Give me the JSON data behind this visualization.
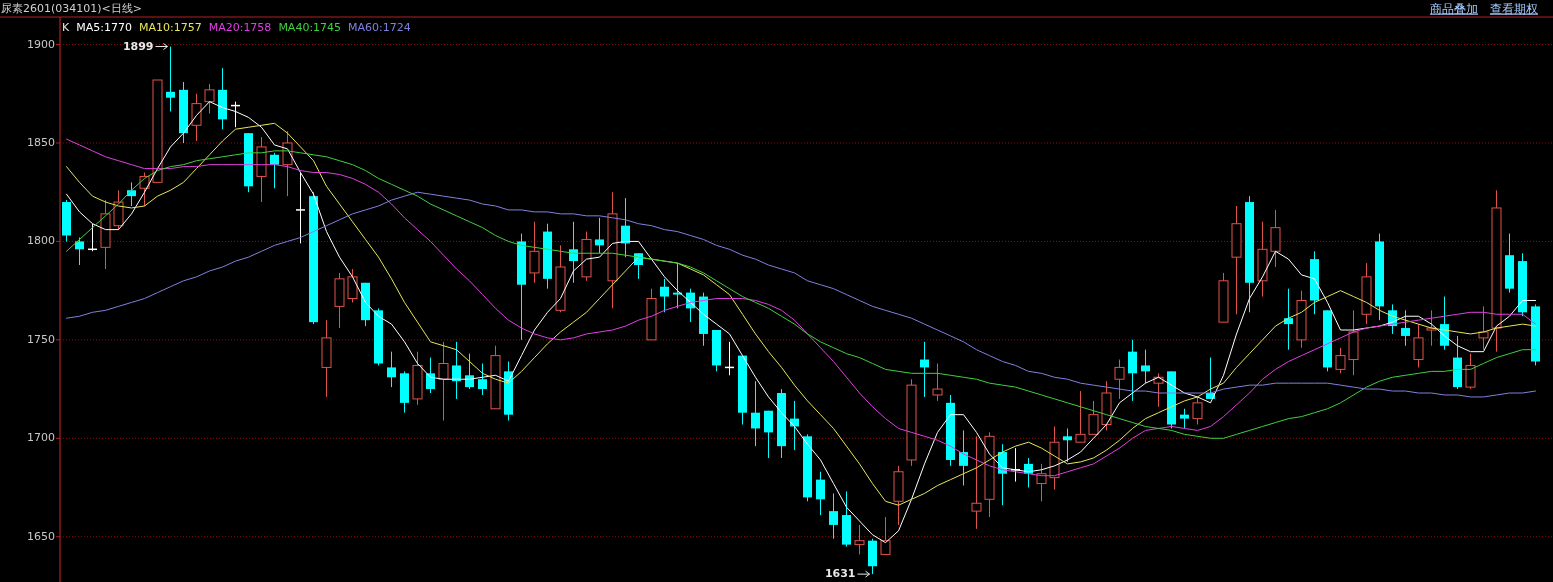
{
  "chart_data": {
    "type": "candlestick",
    "title": "尿素2601(034101)<日线>",
    "legend_title": "K",
    "legend": "top left",
    "grid": "y",
    "tick_labels": "y",
    "annotations": [
      "1899",
      "1631",
      "商品叠加",
      "查看期权"
    ],
    "ylim": [
      1627,
      1914
    ],
    "yticks": [
      1650,
      1700,
      1750,
      1800,
      1850,
      1900
    ],
    "categories": [
      null,
      null,
      null,
      null,
      null,
      null,
      null,
      null,
      null,
      null,
      null,
      null,
      null,
      null,
      null,
      null,
      null,
      null,
      null,
      null,
      null,
      null,
      null,
      null,
      null,
      null,
      null,
      null,
      null,
      null,
      null,
      null,
      null,
      null,
      null,
      null,
      null,
      null,
      null,
      null,
      null,
      null,
      null,
      null,
      null,
      null,
      null,
      null,
      null,
      null,
      null,
      null,
      null,
      null,
      null,
      null,
      null,
      null,
      null,
      null,
      null,
      null,
      null,
      null,
      null,
      null,
      null,
      null,
      null,
      null,
      null,
      null,
      null,
      null,
      null,
      null,
      null,
      null,
      null,
      null,
      null,
      null,
      null,
      null,
      null,
      null,
      null,
      null,
      null,
      null,
      null,
      null,
      null,
      null,
      null,
      null,
      null,
      null,
      null,
      null,
      null,
      null,
      null,
      null,
      null,
      null,
      null,
      null,
      null,
      null,
      null,
      null,
      null,
      null
    ],
    "ohlc": [
      [
        1820,
        1821,
        1800,
        1803
      ],
      [
        1800,
        1802,
        1788,
        1796
      ],
      [
        1796,
        1809,
        1795,
        1796
      ],
      [
        1797,
        1821,
        1786,
        1814
      ],
      [
        1808,
        1826,
        1806,
        1820
      ],
      [
        1826,
        1830,
        1818,
        1823
      ],
      [
        1827,
        1835,
        1818,
        1833
      ],
      [
        1830,
        1882,
        1830,
        1882
      ],
      [
        1876,
        1899,
        1866,
        1873
      ],
      [
        1877,
        1881,
        1850,
        1855
      ],
      [
        1859,
        1875,
        1851,
        1870
      ],
      [
        1871,
        1880,
        1865,
        1877
      ],
      [
        1877,
        1888,
        1857,
        1862
      ],
      [
        1869,
        1871,
        1858,
        1869
      ],
      [
        1855,
        1855,
        1825,
        1828
      ],
      [
        1833,
        1853,
        1820,
        1848
      ],
      [
        1844,
        1845,
        1827,
        1839
      ],
      [
        1839,
        1856,
        1823,
        1850
      ],
      [
        1816,
        1835,
        1799,
        1816
      ],
      [
        1823,
        1825,
        1758,
        1759
      ],
      [
        1736,
        1760,
        1721,
        1751
      ],
      [
        1767,
        1784,
        1756,
        1781
      ],
      [
        1771,
        1786,
        1769,
        1782
      ],
      [
        1779,
        1779,
        1757,
        1760
      ],
      [
        1765,
        1766,
        1737,
        1738
      ],
      [
        1736,
        1744,
        1726,
        1731
      ],
      [
        1733,
        1734,
        1713,
        1718
      ],
      [
        1720,
        1744,
        1717,
        1737
      ],
      [
        1733,
        1741,
        1723,
        1725
      ],
      [
        1730,
        1749,
        1709,
        1738
      ],
      [
        1737,
        1749,
        1720,
        1729
      ],
      [
        1732,
        1743,
        1725,
        1726
      ],
      [
        1730,
        1738,
        1722,
        1725
      ],
      [
        1715,
        1747,
        1715,
        1742
      ],
      [
        1734,
        1739,
        1709,
        1712
      ],
      [
        1800,
        1804,
        1750,
        1778
      ],
      [
        1784,
        1810,
        1779,
        1795
      ],
      [
        1805,
        1809,
        1776,
        1781
      ],
      [
        1765,
        1798,
        1764,
        1787
      ],
      [
        1796,
        1810,
        1779,
        1790
      ],
      [
        1782,
        1805,
        1780,
        1801
      ],
      [
        1801,
        1812,
        1794,
        1798
      ],
      [
        1780,
        1825,
        1766,
        1814
      ],
      [
        1808,
        1822,
        1792,
        1799
      ],
      [
        1794,
        1794,
        1781,
        1788
      ],
      [
        1750,
        1776,
        1750,
        1771
      ],
      [
        1777,
        1781,
        1764,
        1772
      ],
      [
        1774,
        1789,
        1766,
        1773
      ],
      [
        1774,
        1776,
        1759,
        1766
      ],
      [
        1772,
        1774,
        1747,
        1753
      ],
      [
        1755,
        1755,
        1734,
        1737
      ],
      [
        1736,
        1749,
        1732,
        1736
      ],
      [
        1742,
        1742,
        1707,
        1713
      ],
      [
        1713,
        1729,
        1696,
        1705
      ],
      [
        1714,
        1714,
        1690,
        1703
      ],
      [
        1723,
        1725,
        1690,
        1696
      ],
      [
        1710,
        1719,
        1694,
        1706
      ],
      [
        1701,
        1702,
        1668,
        1670
      ],
      [
        1679,
        1683,
        1661,
        1669
      ],
      [
        1663,
        1672,
        1649,
        1656
      ],
      [
        1661,
        1673,
        1645,
        1646
      ],
      [
        1646,
        1656,
        1641,
        1648
      ],
      [
        1648,
        1649,
        1631,
        1635
      ],
      [
        1641,
        1660,
        1641,
        1648
      ],
      [
        1668,
        1686,
        1656,
        1683
      ],
      [
        1689,
        1730,
        1686,
        1727
      ],
      [
        1740,
        1749,
        1721,
        1736
      ],
      [
        1722,
        1738,
        1719,
        1725
      ],
      [
        1718,
        1722,
        1686,
        1689
      ],
      [
        1693,
        1704,
        1676,
        1686
      ],
      [
        1663,
        1701,
        1654,
        1667
      ],
      [
        1669,
        1703,
        1660,
        1701
      ],
      [
        1693,
        1697,
        1666,
        1682
      ],
      [
        1684,
        1695,
        1678,
        1684
      ],
      [
        1687,
        1690,
        1675,
        1682
      ],
      [
        1677,
        1687,
        1668,
        1682
      ],
      [
        1680,
        1706,
        1674,
        1698
      ],
      [
        1701,
        1705,
        1688,
        1699
      ],
      [
        1698,
        1724,
        1698,
        1702
      ],
      [
        1702,
        1719,
        1702,
        1712
      ],
      [
        1707,
        1729,
        1704,
        1723
      ],
      [
        1730,
        1740,
        1720,
        1736
      ],
      [
        1744,
        1750,
        1719,
        1733
      ],
      [
        1737,
        1745,
        1728,
        1734
      ],
      [
        1728,
        1733,
        1716,
        1731
      ],
      [
        1734,
        1734,
        1705,
        1707
      ],
      [
        1712,
        1715,
        1705,
        1710
      ],
      [
        1710,
        1721,
        1707,
        1718
      ],
      [
        1723,
        1741,
        1720,
        1720
      ],
      [
        1759,
        1784,
        1759,
        1780
      ],
      [
        1792,
        1818,
        1763,
        1809
      ],
      [
        1820,
        1823,
        1764,
        1779
      ],
      [
        1780,
        1810,
        1772,
        1796
      ],
      [
        1795,
        1816,
        1787,
        1807
      ],
      [
        1761,
        1776,
        1745,
        1758
      ],
      [
        1750,
        1775,
        1746,
        1770
      ],
      [
        1791,
        1795,
        1763,
        1770
      ],
      [
        1765,
        1765,
        1734,
        1736
      ],
      [
        1735,
        1746,
        1733,
        1742
      ],
      [
        1740,
        1765,
        1732,
        1754
      ],
      [
        1763,
        1789,
        1758,
        1782
      ],
      [
        1800,
        1804,
        1760,
        1767
      ],
      [
        1765,
        1768,
        1753,
        1757
      ],
      [
        1756,
        1765,
        1747,
        1752
      ],
      [
        1740,
        1758,
        1736,
        1751
      ],
      [
        1755,
        1765,
        1747,
        1756
      ],
      [
        1758,
        1772,
        1745,
        1747
      ],
      [
        1741,
        1752,
        1725,
        1726
      ],
      [
        1726,
        1743,
        1725,
        1737
      ],
      [
        1751,
        1767,
        1745,
        1754
      ],
      [
        1756,
        1826,
        1744,
        1817
      ],
      [
        1793,
        1804,
        1774,
        1776
      ],
      [
        1790,
        1794,
        1762,
        1764
      ],
      [
        1767,
        1768,
        1737,
        1739
      ]
    ],
    "colors": [
      "#00ffff",
      "#00ffff",
      "#ffffff",
      "#e0524a",
      "#e0524a",
      "#00ffff",
      "#e0524a",
      "#e0524a",
      "#00ffff",
      "#00ffff",
      "#e0524a",
      "#e0524a",
      "#00ffff",
      "#ffffff",
      "#00ffff",
      "#e0524a",
      "#00ffff",
      "#e0524a",
      "#ffffff",
      "#00ffff",
      "#e0524a",
      "#e0524a",
      "#e0524a",
      "#00ffff",
      "#00ffff",
      "#00ffff",
      "#00ffff",
      "#e0524a",
      "#00ffff",
      "#e0524a",
      "#00ffff",
      "#00ffff",
      "#00ffff",
      "#e0524a",
      "#00ffff",
      "#00ffff",
      "#e0524a",
      "#00ffff",
      "#e0524a",
      "#00ffff",
      "#e0524a",
      "#00ffff",
      "#e0524a",
      "#00ffff",
      "#00ffff",
      "#e0524a",
      "#00ffff",
      "#00ffff",
      "#00ffff",
      "#00ffff",
      "#00ffff",
      "#ffffff",
      "#00ffff",
      "#00ffff",
      "#00ffff",
      "#00ffff",
      "#00ffff",
      "#00ffff",
      "#00ffff",
      "#00ffff",
      "#00ffff",
      "#e0524a",
      "#00ffff",
      "#e0524a",
      "#e0524a",
      "#e0524a",
      "#00ffff",
      "#e0524a",
      "#00ffff",
      "#00ffff",
      "#e0524a",
      "#e0524a",
      "#00ffff",
      "#ffffff",
      "#00ffff",
      "#e0524a",
      "#e0524a",
      "#00ffff",
      "#e0524a",
      "#e0524a",
      "#e0524a",
      "#e0524a",
      "#00ffff",
      "#00ffff",
      "#e0524a",
      "#00ffff",
      "#00ffff",
      "#e0524a",
      "#00ffff",
      "#e0524a",
      "#e0524a",
      "#00ffff",
      "#e0524a",
      "#e0524a",
      "#00ffff",
      "#e0524a",
      "#00ffff",
      "#00ffff",
      "#e0524a",
      "#e0524a",
      "#e0524a",
      "#00ffff",
      "#00ffff",
      "#00ffff",
      "#e0524a",
      "#e0524a",
      "#00ffff",
      "#00ffff",
      "#e0524a",
      "#e0524a",
      "#e0524a",
      "#00ffff",
      "#00ffff",
      "#00ffff"
    ],
    "series": [
      {
        "name": "MA5:1770",
        "color": "#ffffff",
        "type": "line",
        "values": [
          1824,
          1815,
          1809,
          1806,
          1806,
          1814,
          1825,
          1837,
          1848,
          1855,
          1864,
          1871,
          1868,
          1866,
          1863,
          1858,
          1849,
          1847,
          1835,
          1824,
          1805,
          1792,
          1782,
          1769,
          1762,
          1758,
          1749,
          1738,
          1731,
          1730,
          1730,
          1730,
          1731,
          1732,
          1729,
          1742,
          1755,
          1764,
          1771,
          1785,
          1791,
          1792,
          1799,
          1800,
          1800,
          1791,
          1782,
          1775,
          1769,
          1763,
          1758,
          1753,
          1742,
          1731,
          1721,
          1713,
          1706,
          1697,
          1689,
          1677,
          1665,
          1658,
          1651,
          1647,
          1653,
          1669,
          1687,
          1703,
          1712,
          1712,
          1703,
          1692,
          1685,
          1684,
          1683,
          1684,
          1686,
          1689,
          1693,
          1700,
          1707,
          1718,
          1723,
          1728,
          1731,
          1727,
          1723,
          1721,
          1718,
          1732,
          1753,
          1771,
          1782,
          1795,
          1791,
          1783,
          1781,
          1769,
          1755,
          1755,
          1756,
          1757,
          1759,
          1762,
          1762,
          1758,
          1752,
          1747,
          1744,
          1744,
          1757,
          1762,
          1770,
          1770
        ]
      },
      {
        "name": "MA10:1757",
        "color": "#e6e65a",
        "type": "line",
        "values": [
          1838,
          1830,
          1823,
          1820,
          1818,
          1817,
          1818,
          1823,
          1826,
          1830,
          1837,
          1844,
          1851,
          1857,
          1858,
          1859,
          1860,
          1855,
          1848,
          1841,
          1828,
          1819,
          1810,
          1801,
          1792,
          1781,
          1769,
          1759,
          1749,
          1747,
          1745,
          1739,
          1733,
          1730,
          1728,
          1734,
          1741,
          1748,
          1754,
          1759,
          1764,
          1771,
          1778,
          1785,
          1792,
          1791,
          1790,
          1789,
          1786,
          1783,
          1778,
          1773,
          1763,
          1753,
          1744,
          1736,
          1727,
          1719,
          1712,
          1705,
          1696,
          1687,
          1677,
          1668,
          1666,
          1669,
          1672,
          1676,
          1679,
          1682,
          1685,
          1689,
          1693,
          1696,
          1698,
          1695,
          1691,
          1687,
          1688,
          1690,
          1694,
          1699,
          1705,
          1710,
          1713,
          1716,
          1719,
          1721,
          1725,
          1728,
          1736,
          1743,
          1750,
          1757,
          1761,
          1764,
          1769,
          1772,
          1775,
          1772,
          1769,
          1765,
          1762,
          1760,
          1758,
          1756,
          1755,
          1754,
          1753,
          1754,
          1756,
          1757,
          1758,
          1757
        ]
      },
      {
        "name": "MA20:1758",
        "color": "#e040e0",
        "type": "line",
        "values": [
          1852,
          1849,
          1846,
          1843,
          1841,
          1839,
          1837,
          1837,
          1837,
          1838,
          1838,
          1839,
          1839,
          1839,
          1839,
          1839,
          1839,
          1838,
          1836,
          1835,
          1835,
          1834,
          1832,
          1829,
          1825,
          1819,
          1812,
          1806,
          1800,
          1793,
          1786,
          1780,
          1773,
          1766,
          1760,
          1756,
          1753,
          1751,
          1750,
          1751,
          1753,
          1754,
          1755,
          1757,
          1760,
          1762,
          1765,
          1767,
          1769,
          1770,
          1771,
          1771,
          1771,
          1770,
          1768,
          1765,
          1760,
          1753,
          1746,
          1739,
          1731,
          1723,
          1716,
          1710,
          1705,
          1703,
          1701,
          1699,
          1696,
          1692,
          1689,
          1686,
          1684,
          1683,
          1682,
          1681,
          1681,
          1683,
          1685,
          1687,
          1691,
          1695,
          1700,
          1704,
          1705,
          1706,
          1705,
          1704,
          1706,
          1711,
          1717,
          1723,
          1730,
          1735,
          1739,
          1742,
          1745,
          1748,
          1751,
          1754,
          1756,
          1757,
          1758,
          1759,
          1760,
          1761,
          1762,
          1763,
          1764,
          1764,
          1763,
          1763,
          1763,
          1758
        ]
      },
      {
        "name": "MA40:1745",
        "color": "#40d040",
        "type": "line",
        "values": [
          1795,
          1801,
          1807,
          1813,
          1819,
          1826,
          1832,
          1836,
          1838,
          1839,
          1841,
          1842,
          1843,
          1844,
          1845,
          1845,
          1846,
          1846,
          1845,
          1844,
          1843,
          1841,
          1839,
          1836,
          1832,
          1829,
          1826,
          1823,
          1819,
          1816,
          1813,
          1810,
          1807,
          1803,
          1800,
          1798,
          1797,
          1796,
          1795,
          1794,
          1794,
          1794,
          1794,
          1793,
          1792,
          1791,
          1790,
          1789,
          1787,
          1784,
          1780,
          1776,
          1772,
          1769,
          1766,
          1762,
          1758,
          1753,
          1749,
          1746,
          1743,
          1741,
          1738,
          1735,
          1734,
          1733,
          1733,
          1733,
          1732,
          1731,
          1730,
          1728,
          1727,
          1726,
          1724,
          1722,
          1720,
          1718,
          1716,
          1714,
          1712,
          1710,
          1708,
          1706,
          1705,
          1704,
          1702,
          1701,
          1700,
          1700,
          1702,
          1704,
          1706,
          1708,
          1710,
          1711,
          1713,
          1715,
          1718,
          1722,
          1726,
          1729,
          1731,
          1732,
          1733,
          1734,
          1734,
          1735,
          1735,
          1738,
          1741,
          1743,
          1745,
          1745
        ]
      },
      {
        "name": "MA60:1724",
        "color": "#8080e0",
        "type": "line",
        "values": [
          1761,
          1762,
          1764,
          1765,
          1767,
          1769,
          1771,
          1774,
          1777,
          1780,
          1782,
          1785,
          1787,
          1790,
          1792,
          1795,
          1798,
          1800,
          1802,
          1805,
          1808,
          1811,
          1814,
          1816,
          1818,
          1821,
          1823,
          1825,
          1824,
          1823,
          1822,
          1821,
          1819,
          1818,
          1816,
          1816,
          1815,
          1815,
          1814,
          1814,
          1813,
          1813,
          1812,
          1811,
          1809,
          1808,
          1806,
          1805,
          1803,
          1801,
          1798,
          1796,
          1793,
          1791,
          1788,
          1786,
          1784,
          1780,
          1778,
          1776,
          1773,
          1770,
          1767,
          1765,
          1763,
          1761,
          1758,
          1755,
          1752,
          1749,
          1745,
          1742,
          1739,
          1737,
          1734,
          1733,
          1731,
          1730,
          1728,
          1727,
          1726,
          1725,
          1724,
          1724,
          1723,
          1723,
          1723,
          1723,
          1723,
          1725,
          1726,
          1727,
          1727,
          1728,
          1728,
          1728,
          1728,
          1728,
          1727,
          1726,
          1725,
          1725,
          1724,
          1724,
          1723,
          1723,
          1722,
          1722,
          1721,
          1721,
          1722,
          1723,
          1723,
          1724
        ]
      }
    ]
  }
}
